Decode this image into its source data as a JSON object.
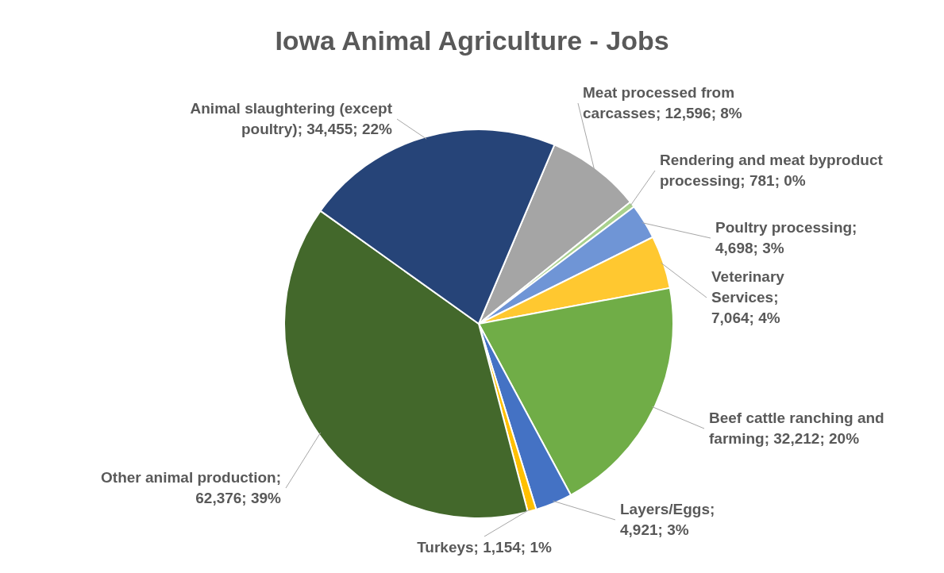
{
  "chart_data": {
    "type": "pie",
    "title": "Iowa Animal Agriculture - Jobs",
    "categories": [
      "Meat processed from carcasses",
      "Rendering and meat byproduct processing",
      "Poultry processing",
      "Veterinary Services",
      "Beef cattle ranching and farming",
      "Layers/Eggs",
      "Turkeys",
      "Other animal production",
      "Animal slaughtering (except poultry)"
    ],
    "values": [
      12596,
      781,
      4698,
      7064,
      32212,
      4921,
      1154,
      62376,
      34455
    ],
    "value_labels": [
      "; 12,596; 8%",
      "; 781; 0%",
      "; 4,698; 3%",
      "; 7,064; 4%",
      "; 32,212; 20%",
      "; 4,921; 3%",
      "; 1,154; 1%",
      "; 62,376; 39%",
      "; 34,455; 22%"
    ],
    "colors": [
      "#a5a5a5",
      "#a9d18e",
      "#6f95d6",
      "#ffc830",
      "#70ad47",
      "#4472c4",
      "#ffc000",
      "#43682b",
      "#264478"
    ]
  }
}
